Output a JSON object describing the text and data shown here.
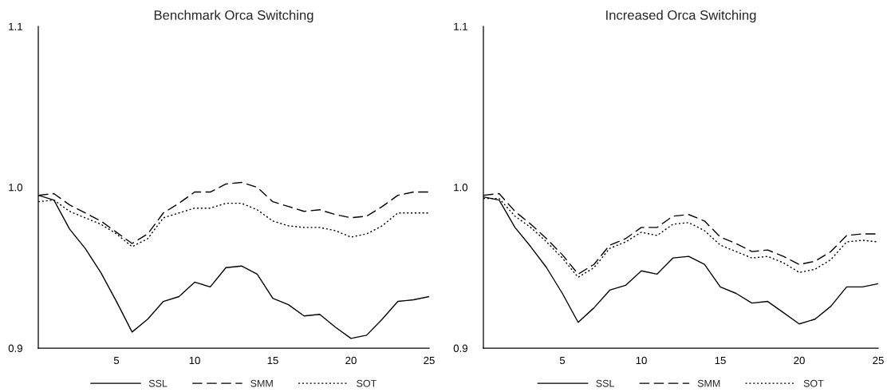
{
  "chart_data": [
    {
      "type": "line",
      "title": "Benchmark Orca Switching",
      "x": [
        0,
        1,
        2,
        3,
        4,
        5,
        6,
        7,
        8,
        9,
        10,
        11,
        12,
        13,
        14,
        15,
        16,
        17,
        18,
        19,
        20,
        21,
        22,
        23,
        24,
        25
      ],
      "xlim": [
        0,
        25
      ],
      "xticks": [
        5,
        10,
        15,
        20,
        25
      ],
      "ylim": [
        0.9,
        1.1
      ],
      "yticks": [
        {
          "value": 0.9,
          "label": "0.9"
        },
        {
          "value": 1.0,
          "label": "1.0"
        },
        {
          "value": 1.1,
          "label": "1.1"
        }
      ],
      "grid": false,
      "legend": "bottom",
      "series": [
        {
          "name": "SSL",
          "color": "#000000",
          "line_style": "solid",
          "values": [
            0.995,
            0.992,
            0.974,
            0.962,
            0.947,
            0.929,
            0.91,
            0.918,
            0.929,
            0.932,
            0.941,
            0.938,
            0.95,
            0.951,
            0.946,
            0.931,
            0.927,
            0.92,
            0.921,
            0.913,
            0.906,
            0.908,
            0.918,
            0.929,
            0.93,
            0.932
          ]
        },
        {
          "name": "SMM",
          "color": "#000000",
          "line_style": "dashed",
          "values": [
            0.995,
            0.996,
            0.989,
            0.984,
            0.979,
            0.972,
            0.965,
            0.971,
            0.984,
            0.99,
            0.997,
            0.997,
            1.002,
            1.003,
            1.0,
            0.991,
            0.988,
            0.985,
            0.986,
            0.983,
            0.981,
            0.982,
            0.988,
            0.995,
            0.997,
            0.997
          ]
        },
        {
          "name": "SOT",
          "color": "#000000",
          "line_style": "dotted",
          "values": [
            0.991,
            0.992,
            0.985,
            0.981,
            0.977,
            0.971,
            0.963,
            0.968,
            0.981,
            0.984,
            0.987,
            0.987,
            0.99,
            0.99,
            0.986,
            0.979,
            0.976,
            0.975,
            0.975,
            0.973,
            0.969,
            0.971,
            0.976,
            0.984,
            0.984,
            0.984
          ]
        }
      ]
    },
    {
      "type": "line",
      "title": "Increased Orca Switching",
      "x": [
        0,
        1,
        2,
        3,
        4,
        5,
        6,
        7,
        8,
        9,
        10,
        11,
        12,
        13,
        14,
        15,
        16,
        17,
        18,
        19,
        20,
        21,
        22,
        23,
        24,
        25
      ],
      "xlim": [
        0,
        25
      ],
      "xticks": [
        5,
        10,
        15,
        20,
        25
      ],
      "ylim": [
        0.9,
        1.1
      ],
      "yticks": [
        {
          "value": 0.9,
          "label": "0.9"
        },
        {
          "value": 1.0,
          "label": "1.0"
        },
        {
          "value": 1.1,
          "label": "1.1"
        }
      ],
      "grid": false,
      "legend": "bottom",
      "series": [
        {
          "name": "SSL",
          "color": "#000000",
          "line_style": "solid",
          "values": [
            0.994,
            0.992,
            0.975,
            0.963,
            0.95,
            0.934,
            0.916,
            0.925,
            0.936,
            0.939,
            0.948,
            0.946,
            0.956,
            0.957,
            0.952,
            0.938,
            0.934,
            0.928,
            0.929,
            0.922,
            0.915,
            0.918,
            0.926,
            0.938,
            0.938,
            0.94
          ]
        },
        {
          "name": "SMM",
          "color": "#000000",
          "line_style": "dashed",
          "values": [
            0.995,
            0.996,
            0.985,
            0.977,
            0.968,
            0.958,
            0.946,
            0.952,
            0.964,
            0.968,
            0.975,
            0.975,
            0.982,
            0.983,
            0.979,
            0.969,
            0.965,
            0.96,
            0.961,
            0.957,
            0.952,
            0.954,
            0.96,
            0.97,
            0.971,
            0.971
          ]
        },
        {
          "name": "SOT",
          "color": "#000000",
          "line_style": "dotted",
          "values": [
            0.993,
            0.993,
            0.982,
            0.975,
            0.966,
            0.956,
            0.944,
            0.95,
            0.962,
            0.966,
            0.972,
            0.97,
            0.977,
            0.978,
            0.973,
            0.964,
            0.96,
            0.956,
            0.957,
            0.953,
            0.947,
            0.949,
            0.955,
            0.966,
            0.967,
            0.966
          ]
        }
      ]
    }
  ]
}
